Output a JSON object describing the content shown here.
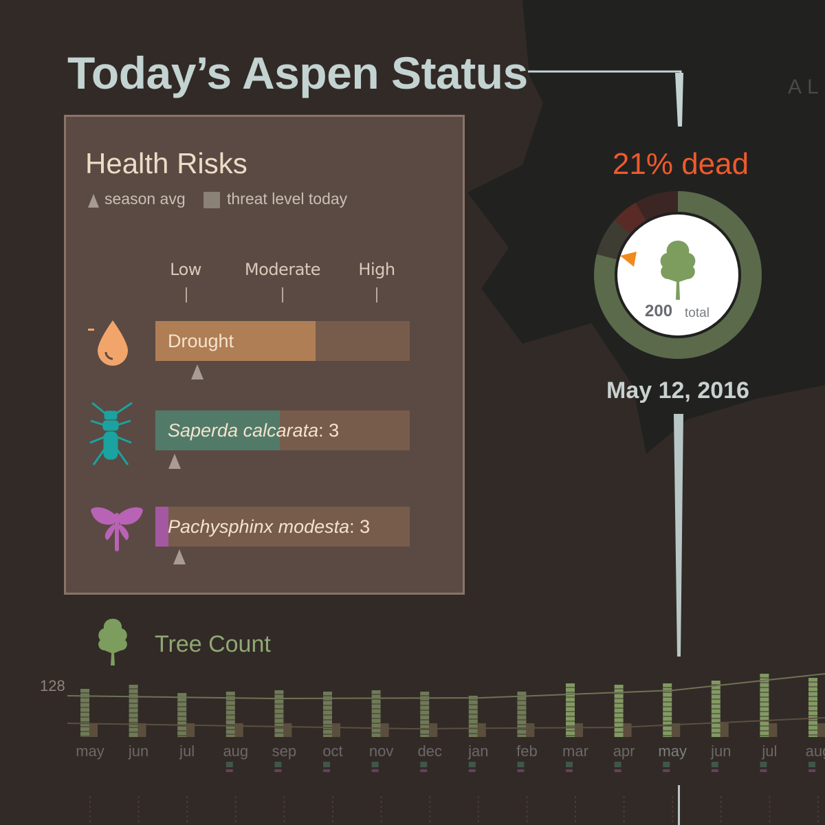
{
  "header": {
    "title": "Today’s Aspen Status",
    "corner_text": "AL"
  },
  "health_panel": {
    "title": "Health Risks",
    "legend": {
      "season_avg": "season avg",
      "threat_today": "threat level today"
    },
    "scale": [
      "Low",
      "Moderate",
      "High"
    ],
    "risks": [
      {
        "name": "Drought",
        "count": "",
        "level": 0.63,
        "season_avg": 0.165,
        "color": "#b07e55",
        "icon": "water-drop-icon"
      },
      {
        "name": "Saperda calcarata",
        "count": ": 3",
        "level": 0.49,
        "season_avg": 0.075,
        "color": "#527a69",
        "icon": "beetle-icon"
      },
      {
        "name": "Pachysphinx modesta",
        "count": ": 3",
        "level": 0.05,
        "season_avg": 0.095,
        "color": "#a458a2",
        "icon": "moth-icon"
      }
    ]
  },
  "status": {
    "percent_dead_label": "21% dead",
    "percent_dead": 21,
    "total_number": "200",
    "total_label": "total",
    "date": "May 12, 2016",
    "colors": {
      "alive": "#5a6a4b",
      "dead": "#5a2b26",
      "accent": "#ef5a2c",
      "marker": "#f08a1c"
    }
  },
  "tree_count": {
    "title": "Tree Count",
    "y_max_label": "128",
    "months": [
      "may",
      "jun",
      "jul",
      "aug",
      "sep",
      "oct",
      "nov",
      "dec",
      "jan",
      "feb",
      "mar",
      "apr",
      "may",
      "jun",
      "jul",
      "aug"
    ],
    "highlight_month_index": 12
  }
}
